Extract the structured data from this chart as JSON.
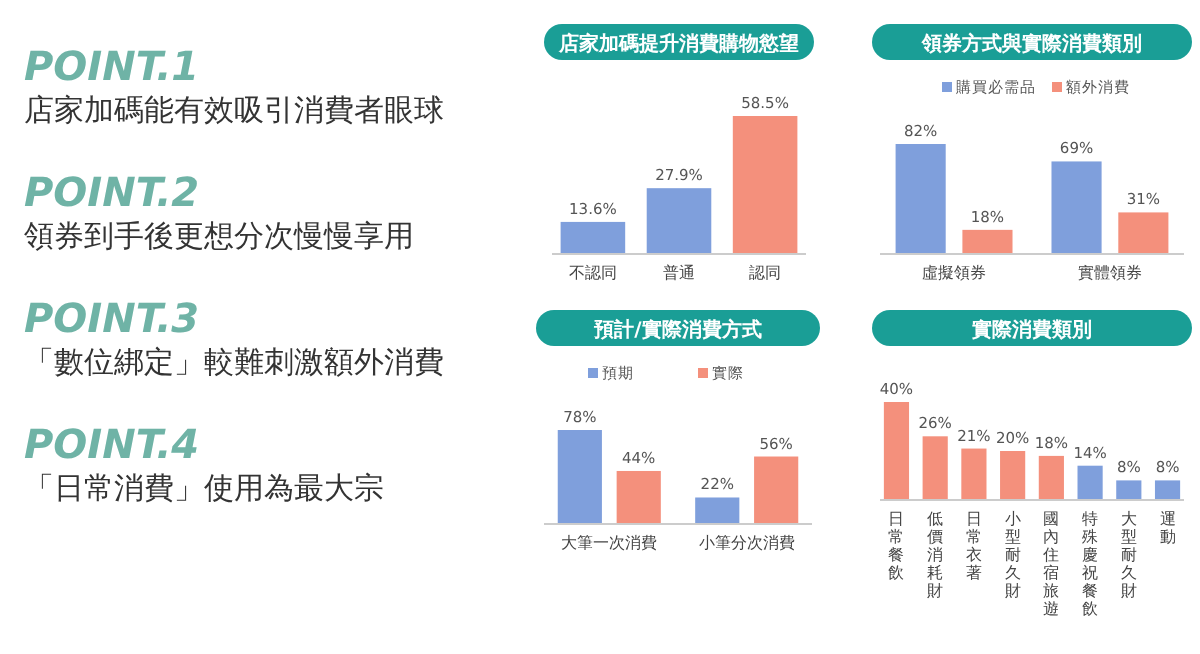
{
  "chart_data": [
    {
      "type": "other",
      "annotations": [
        "POINT.1",
        "店家加碼能有效吸引消費者眼球",
        "POINT.2",
        "領券到手後更想分次慢慢享用",
        "POINT.3",
        "「數位綁定」較難刺激額外消費",
        "POINT.4",
        "「日常消費」使用為最大宗"
      ]
    },
    {
      "type": "bar",
      "title": "店家加碼提升消費購物慾望",
      "categories": [
        "不認同",
        "普通",
        "認同"
      ],
      "values": [
        13.6,
        27.9,
        58.5
      ],
      "colors": [
        "#7f9fdc",
        "#7f9fdc",
        "#f4907c"
      ],
      "value_labels": [
        "13.6%",
        "27.9%",
        "58.5%"
      ]
    },
    {
      "type": "bar",
      "title": "領券方式與實際消費類別",
      "categories": [
        "虛擬領券",
        "實體領券"
      ],
      "legend": "top",
      "series": [
        {
          "name": "購買必需品",
          "color": "#7f9fdc",
          "values": [
            82,
            69
          ],
          "value_labels": [
            "82%",
            "69%"
          ]
        },
        {
          "name": "額外消費",
          "color": "#f4907c",
          "values": [
            18,
            31
          ],
          "value_labels": [
            "18%",
            "31%"
          ]
        }
      ]
    },
    {
      "type": "bar",
      "title": "預計/實際消費方式",
      "categories": [
        "大筆一次消費",
        "小筆分次消費"
      ],
      "legend": "top",
      "series": [
        {
          "name": "預期",
          "color": "#7f9fdc",
          "values": [
            78,
            22
          ],
          "value_labels": [
            "78%",
            "22%"
          ]
        },
        {
          "name": "實際",
          "color": "#f4907c",
          "values": [
            44,
            56
          ],
          "value_labels": [
            "44%",
            "56%"
          ]
        }
      ]
    },
    {
      "type": "bar",
      "title": "實際消費類別",
      "categories": [
        "日常餐飲",
        "低價消耗財",
        "日常衣著",
        "小型耐久財",
        "國內住宿旅遊",
        "特殊慶祝餐飲",
        "大型耐久財",
        "運動"
      ],
      "values": [
        40,
        26,
        21,
        20,
        18,
        14,
        8,
        8
      ],
      "colors": [
        "#f4907c",
        "#f4907c",
        "#f4907c",
        "#f4907c",
        "#f4907c",
        "#7f9fdc",
        "#7f9fdc",
        "#7f9fdc"
      ],
      "value_labels": [
        "40%",
        "26%",
        "21%",
        "20%",
        "18%",
        "14%",
        "8%",
        "8%"
      ]
    }
  ]
}
